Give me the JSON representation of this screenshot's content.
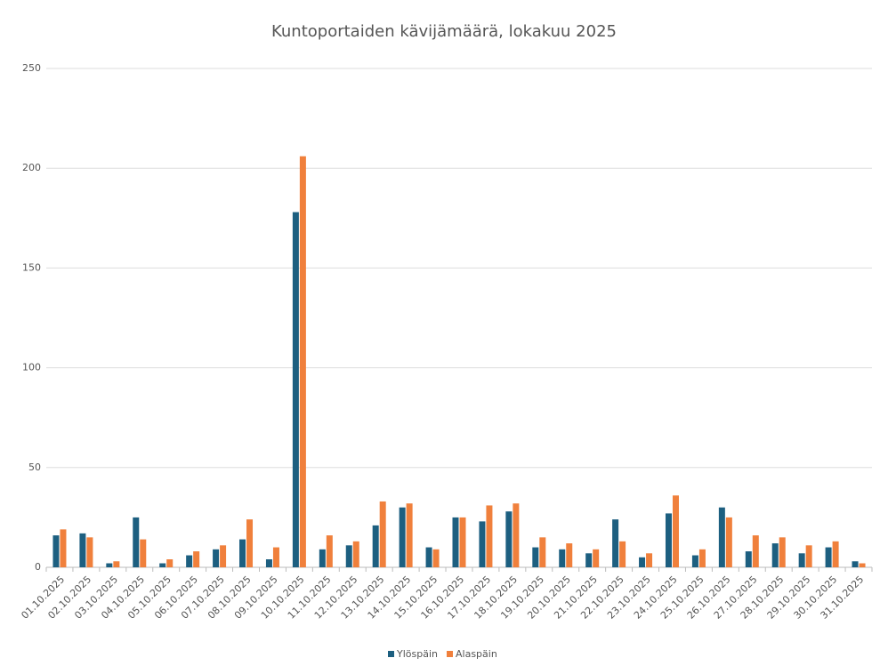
{
  "chart_data": {
    "type": "bar",
    "title": "Kuntoportaiden kävijämäärä, lokakuu 2025",
    "categories": [
      "01.10.2025",
      "02.10.2025",
      "03.10.2025",
      "04.10.2025",
      "05.10.2025",
      "06.10.2025",
      "07.10.2025",
      "08.10.2025",
      "09.10.2025",
      "10.10.2025",
      "11.10.2025",
      "12.10.2025",
      "13.10.2025",
      "14.10.2025",
      "15.10.2025",
      "16.10.2025",
      "17.10.2025",
      "18.10.2025",
      "19.10.2025",
      "20.10.2025",
      "21.10.2025",
      "22.10.2025",
      "23.10.2025",
      "24.10.2025",
      "25.10.2025",
      "26.10.2025",
      "27.10.2025",
      "28.10.2025",
      "29.10.2025",
      "30.10.2025",
      "31.10.2025"
    ],
    "series": [
      {
        "name": "Ylöspäin",
        "color": "#1d5f80",
        "values": [
          16,
          17,
          2,
          25,
          2,
          6,
          9,
          14,
          4,
          178,
          9,
          11,
          21,
          30,
          10,
          25,
          23,
          28,
          10,
          9,
          7,
          24,
          5,
          27,
          6,
          30,
          8,
          12,
          7,
          10,
          3
        ]
      },
      {
        "name": "Alaspäin",
        "color": "#f0803c",
        "values": [
          19,
          15,
          3,
          14,
          4,
          8,
          11,
          24,
          10,
          206,
          16,
          13,
          33,
          32,
          9,
          25,
          31,
          32,
          15,
          12,
          9,
          13,
          7,
          36,
          9,
          25,
          16,
          15,
          11,
          13,
          2
        ]
      }
    ],
    "ylim": [
      0,
      250
    ],
    "yticks": [
      0,
      50,
      100,
      150,
      200,
      250
    ],
    "grid": true,
    "legend": "bottom"
  }
}
